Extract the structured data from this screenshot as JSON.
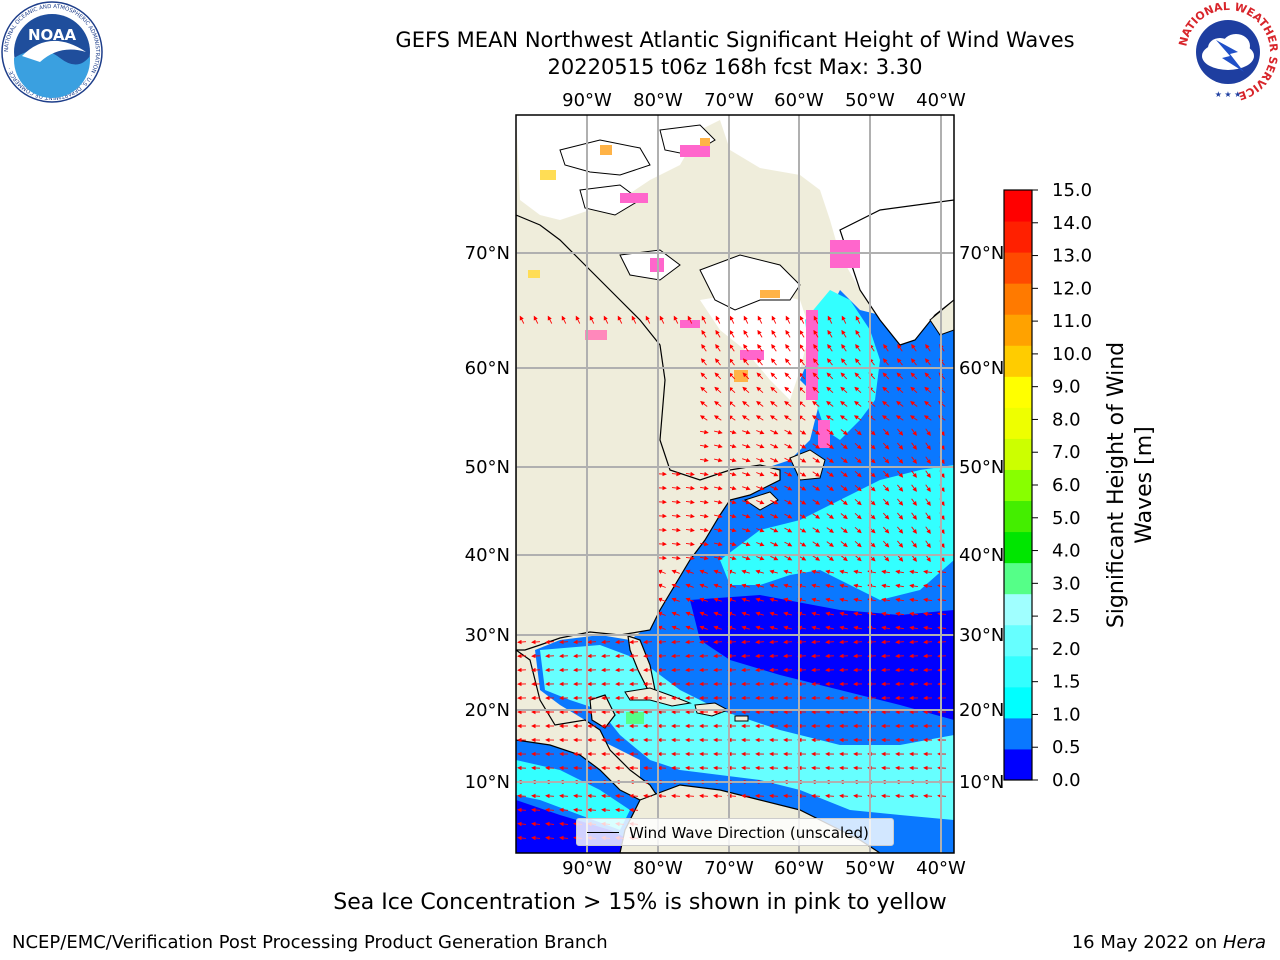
{
  "header": {
    "title_line1": "GEFS MEAN Northwest Atlantic Significant Height of Wind Waves",
    "title_line2": "20220515 t06z 168h fcst   Max: 3.30"
  },
  "logos": {
    "noaa_text": "NOAA",
    "noaa_ring_text": "NATIONAL OCEANIC AND ATMOSPHERIC ADMINISTRATION · U.S. DEPARTMENT OF COMMERCE ·",
    "nws_ring_text": "NATIONAL WEATHER SERVICE"
  },
  "map": {
    "lon_labels": [
      "90°W",
      "80°W",
      "70°W",
      "60°W",
      "50°W",
      "40°W"
    ],
    "lat_labels": [
      "70°N",
      "60°N",
      "50°N",
      "40°N",
      "30°N",
      "20°N",
      "10°N"
    ],
    "land_color": "#efeddb",
    "ocean_no_data_color": "#ffffff",
    "arrow_color": "#ff0000",
    "grid_color": "#b0b0b0"
  },
  "legend": {
    "label": "Wind Wave Direction (unscaled)"
  },
  "colorbar": {
    "label": "Significant Height of Wind Waves [m]",
    "label_line1": "Significant Height of Wind",
    "label_line2": "Waves [m]",
    "ticks": [
      "0.0",
      "0.5",
      "1.0",
      "1.5",
      "2.0",
      "2.5",
      "3.0",
      "4.0",
      "5.0",
      "6.0",
      "7.0",
      "8.0",
      "9.0",
      "10.0",
      "11.0",
      "12.0",
      "13.0",
      "14.0",
      "15.0"
    ],
    "colors": [
      "#0000ff",
      "#0a78ff",
      "#00ffff",
      "#33ffff",
      "#66ffff",
      "#a0ffff",
      "#55ff88",
      "#00e600",
      "#44ee00",
      "#88ff00",
      "#ccff00",
      "#eeff00",
      "#ffff00",
      "#ffcc00",
      "#ffa200",
      "#ff7a00",
      "#ff4a00",
      "#ff2000",
      "#ff0000"
    ]
  },
  "caption": "Sea Ice Concentration > 15% is shown in pink to yellow",
  "footer": {
    "left": "NCEP/EMC/Verification Post Processing Product Generation Branch",
    "right_date": "16 May 2022 on ",
    "right_host": "Hera"
  }
}
